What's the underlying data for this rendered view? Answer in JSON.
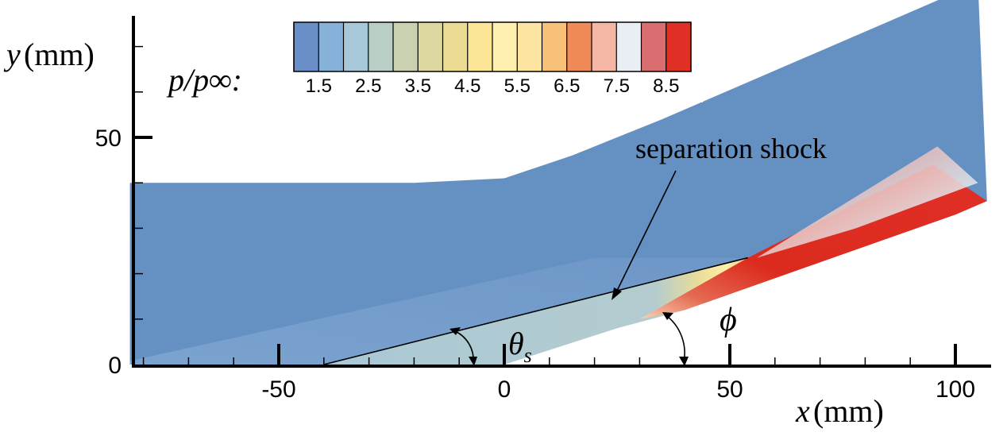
{
  "chart_data": {
    "type": "contour",
    "title": "",
    "xlabel": {
      "var": "x",
      "unit": "(mm)"
    },
    "ylabel": {
      "var": "y",
      "unit": "(mm)"
    },
    "xlim": [
      -83,
      107
    ],
    "ylim": [
      0,
      70
    ],
    "x_major_ticks": [
      -50,
      0,
      50,
      100
    ],
    "x_tick_labels": [
      "-50",
      "0",
      "50",
      "100"
    ],
    "y_major_ticks": [
      0,
      50
    ],
    "y_tick_labels": [
      "0",
      "50"
    ],
    "colorbar": {
      "variable_label": "p/p∞:",
      "tick_labels": [
        "1.5",
        "2.5",
        "3.5",
        "4.5",
        "5.5",
        "6.5",
        "7.5",
        "8.5"
      ],
      "levels": [
        1.0,
        1.5,
        2.0,
        2.5,
        3.0,
        3.5,
        4.0,
        4.5,
        5.0,
        5.5,
        6.0,
        6.5,
        7.0,
        7.5,
        8.0,
        8.5,
        9.0
      ],
      "colors": [
        "#6a8fc8",
        "#86b1d8",
        "#a7c8d8",
        "#b9cfc6",
        "#cad1b0",
        "#dbd79e",
        "#ecdc93",
        "#fbe597",
        "#fff0b0",
        "#fde4a0",
        "#f9c07a",
        "#f08a58",
        "#f4b7a6",
        "#e8eef4",
        "#d96e70",
        "#e03026"
      ]
    },
    "annotations": [
      {
        "text": "separation shock",
        "points_to": [
          23,
          16
        ]
      },
      {
        "text": "θ",
        "subscript": "s",
        "meaning": "shock angle at separation"
      },
      {
        "text": "ϕ",
        "meaning": "ramp angle"
      }
    ],
    "geometry": {
      "flat_plate_end_x": 0,
      "ramp_angle_deg": 15,
      "separation_x": -40,
      "shock_angle_deg": 11,
      "domain_outline": [
        [
          -83,
          40
        ],
        [
          -20,
          40
        ],
        [
          0,
          41
        ],
        [
          15,
          46
        ],
        [
          35,
          54
        ],
        [
          105,
          84
        ],
        [
          107,
          36
        ],
        [
          100,
          33
        ],
        [
          40,
          12
        ],
        [
          0,
          0
        ],
        [
          -83,
          0
        ]
      ]
    },
    "colors": {
      "freestream": "#6490c2",
      "separation_bubble": "#a9c8d6",
      "reattachment": "#e03026",
      "edge_pink": "#e8a6a4",
      "edge_light": "#e2e8ee",
      "leading_shock_band": "#82a9d2"
    }
  }
}
